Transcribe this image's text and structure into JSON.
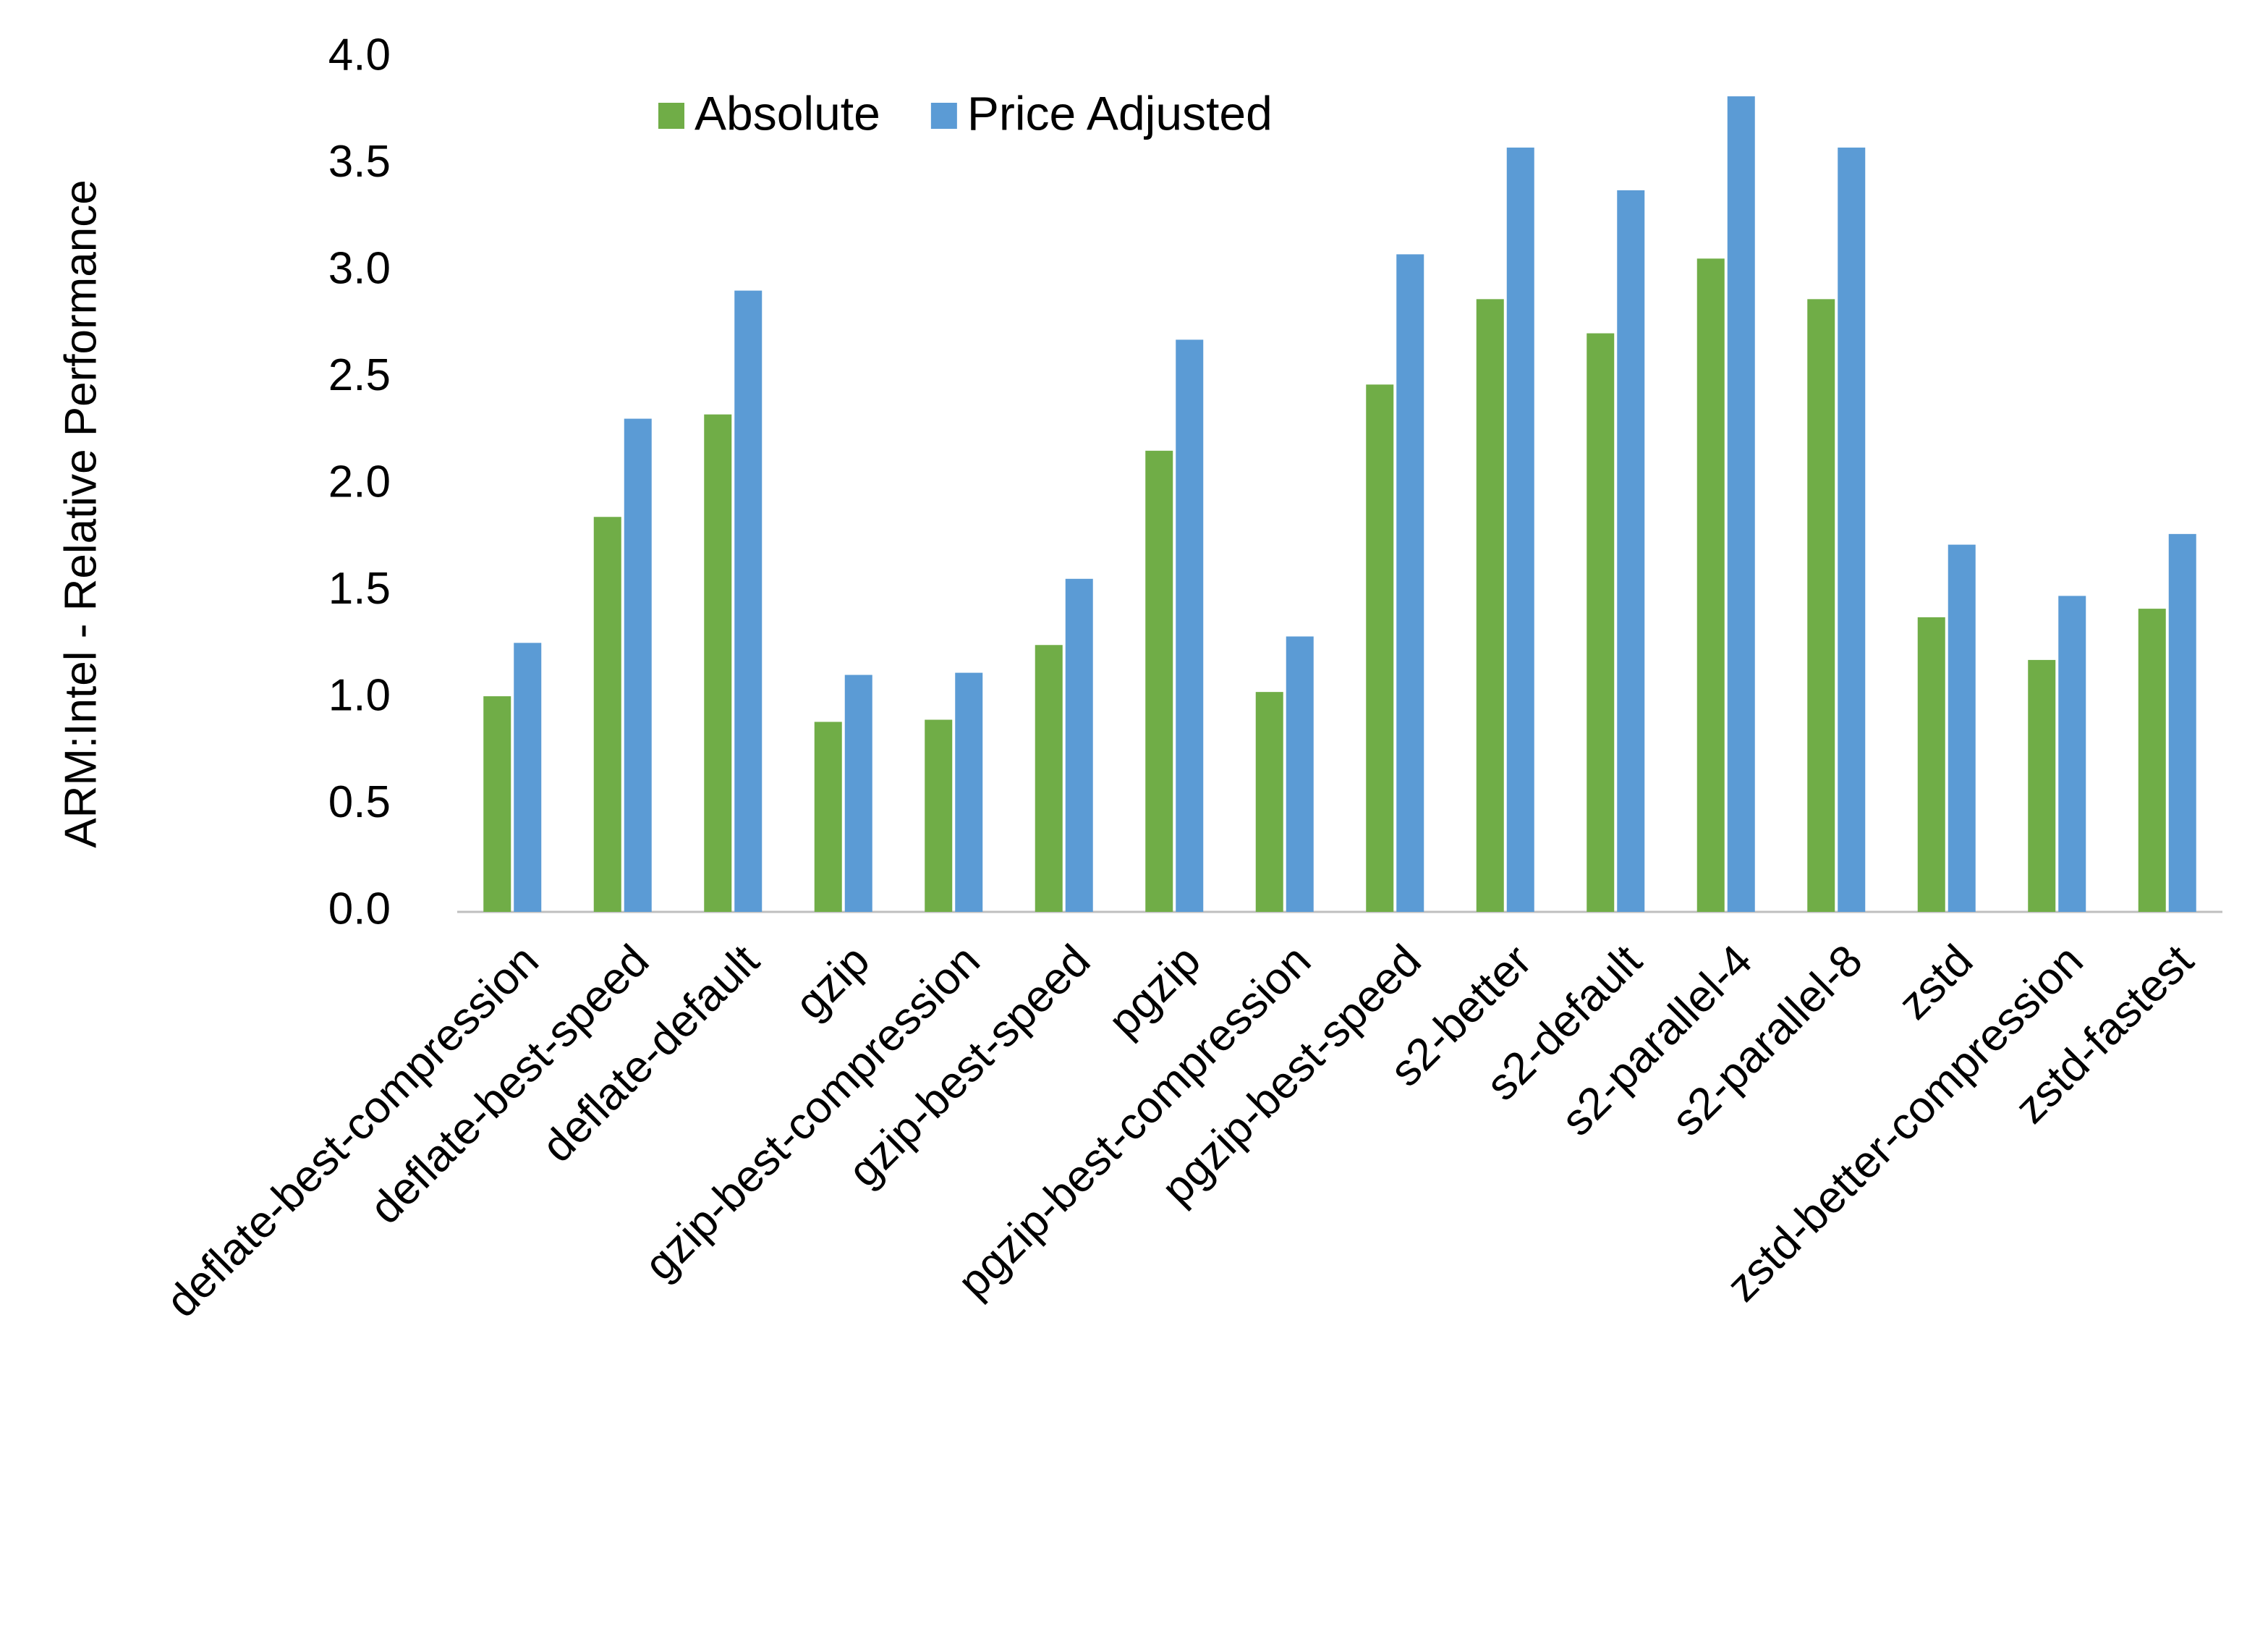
{
  "chart_data": {
    "type": "bar",
    "y_axis_label": "ARM:Intel - Relative Performance",
    "categories": [
      "deflate-best-compression",
      "deflate-best-speed",
      "deflate-default",
      "gzip",
      "gzip-best-compression",
      "gzip-best-speed",
      "pgzip",
      "pgzip-best-compression",
      "pgzip-best-speed",
      "s2-better",
      "s2-default",
      "s2-parallel-4",
      "s2-parallel-8",
      "zstd",
      "zstd-better-compression",
      "zstd-fastest"
    ],
    "series": [
      {
        "name": "Absolute",
        "color": "#70ad47",
        "values": [
          1.01,
          1.85,
          2.33,
          0.89,
          0.9,
          1.25,
          2.16,
          1.03,
          2.47,
          2.87,
          2.71,
          3.06,
          2.87,
          1.38,
          1.18,
          1.42
        ]
      },
      {
        "name": "Price Adjusted",
        "color": "#5b9bd5",
        "values": [
          1.26,
          2.31,
          2.91,
          1.11,
          1.12,
          1.56,
          2.68,
          1.29,
          3.08,
          3.58,
          3.38,
          3.82,
          3.58,
          1.72,
          1.48,
          1.77
        ]
      }
    ],
    "ylim": [
      0,
      4
    ],
    "yticks": [
      {
        "value": 0,
        "label": "0.0"
      },
      0.5,
      {
        "value": 1,
        "label": "1.0"
      },
      1.5,
      {
        "value": 2,
        "label": "2.0"
      },
      2.5,
      {
        "value": 3,
        "label": "3.0"
      },
      3.5,
      {
        "value": 4,
        "label": "4.0"
      }
    ],
    "grid": false,
    "legend": "top"
  }
}
